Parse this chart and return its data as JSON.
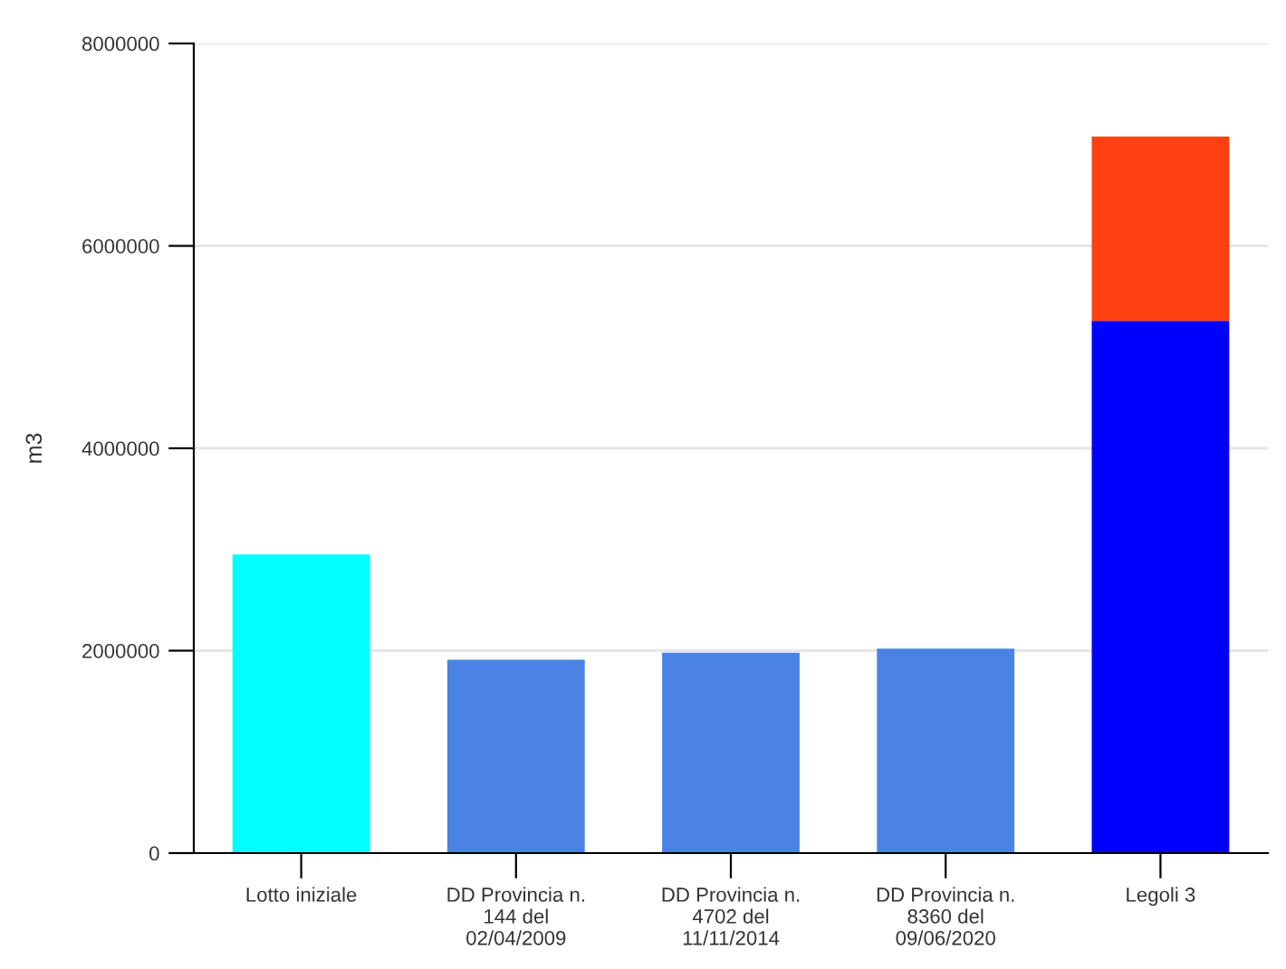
{
  "chart_data": {
    "type": "bar",
    "stacked": true,
    "ylabel": "m3",
    "categories": [
      "Lotto iniziale",
      "DD Provincia n.\n144 del\n02/04/2009",
      "DD Provincia n.\n4702 del\n11/11/2014",
      "DD Provincia n.\n8360 del\n09/06/2020",
      "Legoli 3"
    ],
    "series": [
      {
        "colors": [
          "#00ffff",
          "#4a83e3",
          "#4a83e3",
          "#4a83e3",
          "#0000ff"
        ],
        "values": [
          2950000,
          1910000,
          1980000,
          2020000,
          5260000
        ]
      },
      {
        "color": "#ff4010",
        "values": [
          null,
          null,
          null,
          null,
          1820000
        ]
      }
    ],
    "ylim": [
      0,
      8000000
    ],
    "yticks": [
      0,
      2000000,
      4000000,
      6000000,
      8000000
    ],
    "grid": "y",
    "legend": false
  }
}
